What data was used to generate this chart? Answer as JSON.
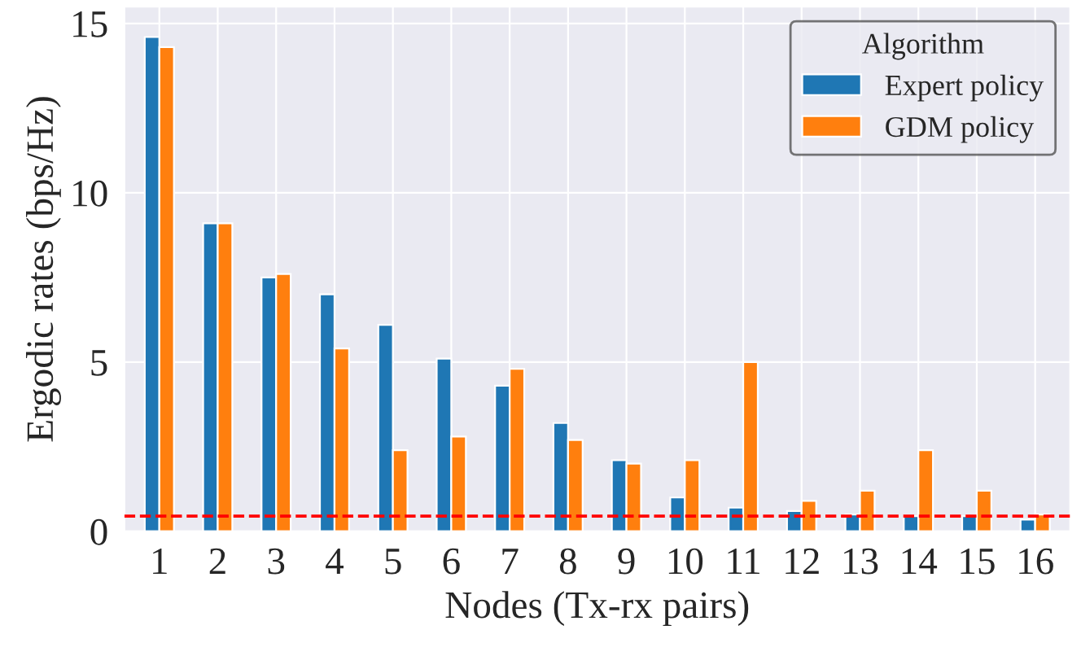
{
  "chart_data": {
    "type": "bar",
    "xlabel": "Nodes (Tx-rx pairs)",
    "ylabel": "Ergodic rates (bps/Hz)",
    "legend_title": "Algorithm",
    "categories": [
      "1",
      "2",
      "3",
      "4",
      "5",
      "6",
      "7",
      "8",
      "9",
      "10",
      "11",
      "12",
      "13",
      "14",
      "15",
      "16"
    ],
    "series": [
      {
        "name": "Expert policy",
        "color": "#1f77b4",
        "values": [
          14.6,
          9.1,
          7.5,
          7.0,
          6.1,
          5.1,
          4.3,
          3.2,
          2.1,
          1.0,
          0.7,
          0.6,
          0.5,
          0.45,
          0.45,
          0.35
        ]
      },
      {
        "name": "GDM policy",
        "color": "#ff7f0e",
        "values": [
          14.3,
          9.1,
          7.6,
          5.4,
          2.4,
          2.8,
          4.8,
          2.7,
          2.0,
          2.1,
          5.0,
          0.9,
          1.2,
          2.4,
          1.2,
          0.5
        ]
      }
    ],
    "ylim": [
      0,
      15.5
    ],
    "yticks": [
      0,
      5,
      10,
      15
    ],
    "ref_lines": [
      {
        "axis": "y",
        "value": 0.45,
        "color": "#ff0000",
        "line_style": "dashed"
      }
    ],
    "grid": true,
    "legend": "top right"
  }
}
